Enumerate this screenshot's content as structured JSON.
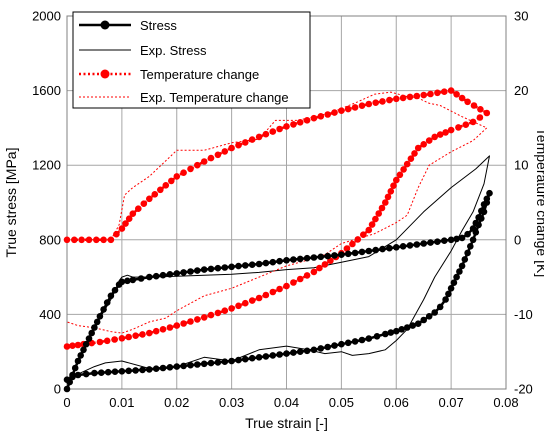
{
  "chart_data": {
    "type": "line",
    "xlabel": "True strain [-]",
    "ylabel": "True stress [MPa]",
    "y2label": "Temperature change [K]",
    "xlim": [
      0,
      0.08
    ],
    "ylim": [
      0,
      2000
    ],
    "y2lim": [
      -20,
      30
    ],
    "x_ticks": [
      "0",
      "0.01",
      "0.02",
      "0.03",
      "0.04",
      "0.05",
      "0.06",
      "0.07",
      "0.08"
    ],
    "y_ticks": [
      "0",
      "400",
      "800",
      "1200",
      "1600",
      "2000"
    ],
    "y2_ticks": [
      "-20",
      "-10",
      "0",
      "10",
      "20",
      "30"
    ],
    "grid": true,
    "legend_position": "top-left",
    "colors": {
      "stress": "#000000",
      "temperature": "#ff0000"
    },
    "series": [
      {
        "name": "Stress",
        "axis": "left",
        "style": "line-marker",
        "x": [
          0,
          0.002,
          0.004,
          0.006,
          0.008,
          0.0095,
          0.01,
          0.012,
          0.015,
          0.02,
          0.025,
          0.03,
          0.035,
          0.04,
          0.045,
          0.05,
          0.055,
          0.06,
          0.065,
          0.07,
          0.072,
          0.073,
          0.074,
          0.075,
          0.076,
          0.077,
          0.0765,
          0.076,
          0.075,
          0.074,
          0.073,
          0.072,
          0.071,
          0.07,
          0.069,
          0.068,
          0.067,
          0.066,
          0.065,
          0.064,
          0.063,
          0.062,
          0.061,
          0.06,
          0.058,
          0.055,
          0.05,
          0.045,
          0.04,
          0.035,
          0.03,
          0.025,
          0.02,
          0.015,
          0.01,
          0.005,
          0.002,
          0.001,
          0
        ],
        "y": [
          0,
          150,
          270,
          390,
          500,
          560,
          575,
          585,
          600,
          620,
          640,
          655,
          670,
          690,
          705,
          720,
          740,
          760,
          780,
          800,
          810,
          830,
          860,
          920,
          990,
          1050,
          1000,
          950,
          880,
          800,
          730,
          660,
          600,
          540,
          480,
          440,
          410,
          390,
          370,
          350,
          340,
          330,
          320,
          310,
          295,
          270,
          240,
          210,
          190,
          170,
          150,
          135,
          120,
          105,
          95,
          85,
          75,
          65,
          50
        ]
      },
      {
        "name": "Exp. Stress",
        "axis": "left",
        "style": "line",
        "x": [
          0,
          0.002,
          0.004,
          0.006,
          0.008,
          0.009,
          0.0095,
          0.01,
          0.011,
          0.012,
          0.015,
          0.02,
          0.025,
          0.03,
          0.035,
          0.04,
          0.045,
          0.05,
          0.055,
          0.06,
          0.065,
          0.07,
          0.0745,
          0.077,
          0.076,
          0.074,
          0.072,
          0.07,
          0.067,
          0.065,
          0.062,
          0.06,
          0.058,
          0.055,
          0.052,
          0.05,
          0.047,
          0.044,
          0.04,
          0.035,
          0.03,
          0.025,
          0.02,
          0.015,
          0.01,
          0.007,
          0.005,
          0.002,
          0.001
        ],
        "y": [
          0,
          140,
          260,
          380,
          480,
          540,
          580,
          600,
          610,
          600,
          600,
          605,
          610,
          615,
          625,
          640,
          650,
          680,
          710,
          800,
          950,
          1080,
          1180,
          1250,
          1100,
          950,
          850,
          740,
          600,
          480,
          320,
          260,
          210,
          190,
          180,
          200,
          190,
          210,
          230,
          210,
          150,
          170,
          120,
          110,
          150,
          140,
          120,
          80,
          60
        ]
      },
      {
        "name": "Temperature change",
        "axis": "right",
        "style": "dotted-marker",
        "x": [
          0,
          0.004,
          0.008,
          0.01,
          0.012,
          0.015,
          0.02,
          0.025,
          0.03,
          0.035,
          0.04,
          0.045,
          0.05,
          0.055,
          0.06,
          0.065,
          0.07,
          0.073,
          0.0765,
          0.074,
          0.07,
          0.067,
          0.064,
          0.06,
          0.058,
          0.055,
          0.05,
          0.045,
          0.04,
          0.035,
          0.03,
          0.025,
          0.02,
          0.015,
          0.01,
          0.006,
          0.003,
          0.001,
          0
        ],
        "y": [
          0,
          0,
          0,
          1.5,
          3.5,
          5.5,
          8.5,
          10.5,
          12.3,
          13.8,
          15.2,
          16.3,
          17.3,
          18.2,
          18.9,
          19.4,
          20,
          18.5,
          17,
          15.8,
          14.7,
          13.8,
          12.3,
          8,
          5,
          1.3,
          -1.8,
          -4.3,
          -6.2,
          -7.8,
          -9.2,
          -10.4,
          -11.5,
          -12.5,
          -13.2,
          -13.7,
          -14,
          -14.2,
          -14.3
        ]
      },
      {
        "name": "Exp. Temperature change",
        "axis": "right",
        "style": "dotted",
        "x": [
          0,
          0.004,
          0.008,
          0.0095,
          0.0105,
          0.012,
          0.015,
          0.02,
          0.025,
          0.03,
          0.035,
          0.038,
          0.042,
          0.048,
          0.053,
          0.056,
          0.059,
          0.062,
          0.064,
          0.066,
          0.068,
          0.072,
          0.0765,
          0.074,
          0.07,
          0.066,
          0.064,
          0.062,
          0.06,
          0.056,
          0.05,
          0.047,
          0.044,
          0.04,
          0.035,
          0.03,
          0.025,
          0.02,
          0.018,
          0.015,
          0.012,
          0.01,
          0.008,
          0.005,
          0.002,
          0
        ],
        "y": [
          0,
          0,
          0,
          2,
          6,
          7,
          8.5,
          12,
          12,
          13,
          13.5,
          16,
          16,
          17,
          18.5,
          19.5,
          19.8,
          19.2,
          19,
          18.3,
          18,
          16.5,
          15,
          13.3,
          11.8,
          10,
          7,
          3.3,
          2.3,
          0.8,
          -0.5,
          -2,
          -2.7,
          -3.5,
          -5,
          -6.5,
          -7.5,
          -9.5,
          -10.5,
          -11,
          -12,
          -12.5,
          -12.3,
          -11.8,
          -11.5,
          -11
        ]
      }
    ]
  }
}
